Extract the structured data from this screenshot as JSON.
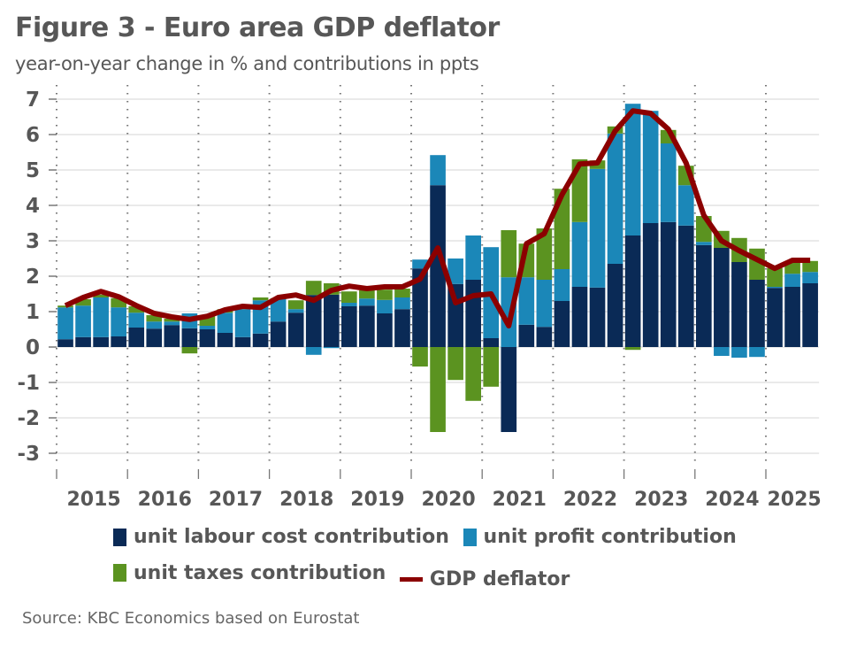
{
  "colors": {
    "unit_labour_cost": "#0A2A56",
    "unit_profit": "#1B87B8",
    "unit_taxes": "#5B9320",
    "gdp_deflator": "#8B0000",
    "text": "#575757",
    "grid": "#e3e3e3"
  },
  "chart_data": {
    "type": "bar",
    "stacked": true,
    "title": "Figure 3 - Euro area GDP deflator",
    "subtitle": "year-on-year change in % and contributions in ppts",
    "xlabel": "",
    "ylabel": "",
    "ylim": [
      -3,
      7
    ],
    "yticks": [
      "7",
      "6",
      "5",
      "4",
      "3",
      "2",
      "1",
      "0",
      "-1",
      "-2",
      "-3"
    ],
    "ytick_values": [
      7,
      6,
      5,
      4,
      3,
      2,
      1,
      0,
      -1,
      -2,
      -3
    ],
    "grid": true,
    "legend_position": "bottom",
    "year_labels": [
      "2015",
      "2016",
      "2017",
      "2018",
      "2019",
      "2020",
      "2021",
      "2022",
      "2023",
      "2024",
      "2025"
    ],
    "categories": [
      "2015Q1",
      "2015Q2",
      "2015Q3",
      "2015Q4",
      "2016Q1",
      "2016Q2",
      "2016Q3",
      "2016Q4",
      "2017Q1",
      "2017Q2",
      "2017Q3",
      "2017Q4",
      "2018Q1",
      "2018Q2",
      "2018Q3",
      "2018Q4",
      "2019Q1",
      "2019Q2",
      "2019Q3",
      "2019Q4",
      "2020Q1",
      "2020Q2",
      "2020Q3",
      "2020Q4",
      "2021Q1",
      "2021Q2",
      "2021Q3",
      "2021Q4",
      "2022Q1",
      "2022Q2",
      "2022Q3",
      "2022Q4",
      "2023Q1",
      "2023Q2",
      "2023Q3",
      "2023Q4",
      "2024Q1",
      "2024Q2",
      "2024Q3",
      "2024Q4",
      "2025Q1",
      "2025Q2",
      "2025Q3"
    ],
    "series": [
      {
        "name": "unit labour cost contribution",
        "type": "bar",
        "values": [
          0.22,
          0.28,
          0.28,
          0.3,
          0.55,
          0.52,
          0.62,
          0.53,
          0.5,
          0.4,
          0.28,
          0.38,
          0.72,
          0.97,
          1.47,
          1.48,
          1.15,
          1.17,
          0.95,
          1.07,
          2.22,
          4.57,
          1.78,
          1.9,
          0.25,
          -2.4,
          0.63,
          0.57,
          1.3,
          1.7,
          1.68,
          2.35,
          3.15,
          3.5,
          3.53,
          3.43,
          2.88,
          2.8,
          2.4,
          1.9,
          1.67,
          1.7,
          1.8
        ]
      },
      {
        "name": "unit profit contribution",
        "type": "bar",
        "values": [
          0.9,
          0.89,
          1.12,
          0.82,
          0.42,
          0.2,
          0.1,
          0.42,
          0.1,
          0.57,
          0.79,
          0.94,
          0.63,
          0.1,
          -0.22,
          -0.03,
          0.1,
          0.2,
          0.38,
          0.33,
          0.25,
          0.85,
          0.72,
          1.25,
          2.57,
          1.97,
          1.34,
          1.33,
          0.9,
          1.83,
          3.35,
          3.68,
          3.72,
          3.17,
          2.22,
          1.14,
          0.09,
          -0.25,
          -0.3,
          -0.28,
          0.03,
          0.37,
          0.32
        ]
      },
      {
        "name": "unit taxes contribution",
        "type": "bar",
        "values": [
          0.05,
          0.18,
          0.08,
          0.26,
          0.18,
          0.18,
          0.08,
          -0.18,
          0.28,
          0.1,
          0.05,
          0.08,
          0.03,
          0.25,
          0.4,
          0.32,
          0.32,
          0.23,
          0.29,
          0.25,
          -0.55,
          -2.4,
          -0.93,
          -1.52,
          -1.12,
          1.33,
          0.95,
          1.45,
          2.27,
          1.77,
          0.24,
          0.2,
          -0.08,
          0.0,
          0.38,
          0.55,
          0.73,
          0.48,
          0.68,
          0.88,
          0.53,
          0.33,
          0.31
        ]
      },
      {
        "name": "GDP deflator",
        "type": "line",
        "values": [
          1.17,
          1.4,
          1.57,
          1.42,
          1.17,
          0.95,
          0.85,
          0.78,
          0.87,
          1.05,
          1.15,
          1.12,
          1.4,
          1.47,
          1.32,
          1.6,
          1.72,
          1.65,
          1.7,
          1.7,
          1.92,
          2.8,
          1.25,
          1.45,
          1.5,
          0.6,
          2.92,
          3.2,
          4.3,
          5.17,
          5.2,
          6.1,
          6.67,
          6.6,
          6.15,
          5.2,
          3.72,
          3.0,
          2.72,
          2.47,
          2.22,
          2.45,
          2.45
        ]
      }
    ],
    "source": "Source: KBC Economics based on Eurostat"
  },
  "legend": [
    {
      "label": "unit labour cost contribution",
      "kind": "box",
      "color_key": "unit_labour_cost"
    },
    {
      "label": "unit profit contribution",
      "kind": "box",
      "color_key": "unit_profit"
    },
    {
      "label": "unit taxes contribution",
      "kind": "box",
      "color_key": "unit_taxes"
    },
    {
      "label": "GDP deflator",
      "kind": "line",
      "color_key": "gdp_deflator"
    }
  ]
}
